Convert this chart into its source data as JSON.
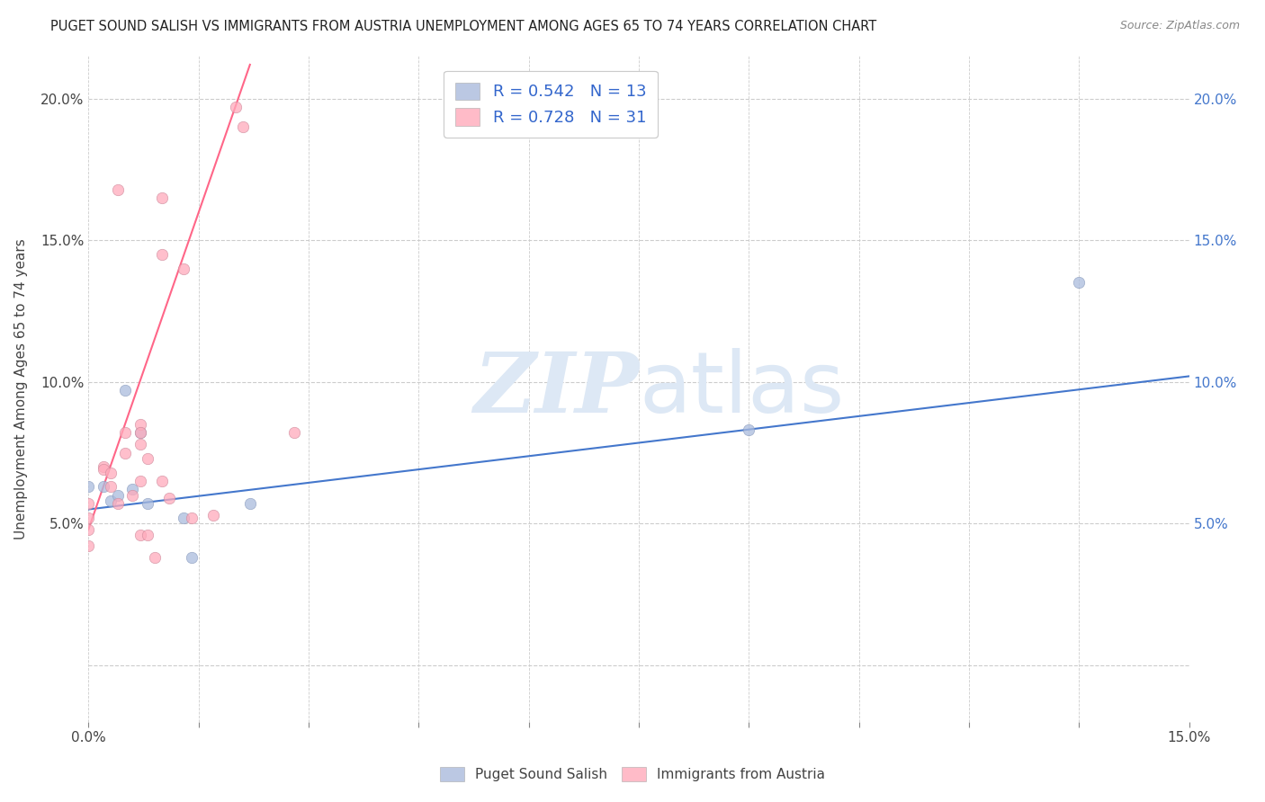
{
  "title": "PUGET SOUND SALISH VS IMMIGRANTS FROM AUSTRIA UNEMPLOYMENT AMONG AGES 65 TO 74 YEARS CORRELATION CHART",
  "source": "Source: ZipAtlas.com",
  "ylabel": "Unemployment Among Ages 65 to 74 years",
  "xlim": [
    0.0,
    0.15
  ],
  "ylim": [
    -0.02,
    0.215
  ],
  "x_ticks_minor": [
    0.0,
    0.015,
    0.03,
    0.045,
    0.06,
    0.075,
    0.09,
    0.105,
    0.12,
    0.135,
    0.15
  ],
  "x_tick_left_label": "0.0%",
  "x_tick_right_label": "15.0%",
  "y_ticks": [
    0.0,
    0.05,
    0.1,
    0.15,
    0.2
  ],
  "y_tick_labels_left": [
    "",
    "5.0%",
    "10.0%",
    "15.0%",
    "20.0%"
  ],
  "y_tick_labels_right": [
    "",
    "5.0%",
    "10.0%",
    "15.0%",
    "20.0%"
  ],
  "background_color": "#ffffff",
  "grid_color": "#cccccc",
  "blue_color": "#aabbdd",
  "pink_color": "#ffaabb",
  "blue_line_color": "#4477cc",
  "pink_line_color": "#ff6688",
  "legend_R_blue": "0.542",
  "legend_N_blue": "13",
  "legend_R_pink": "0.728",
  "legend_N_pink": "31",
  "blue_label": "Puget Sound Salish",
  "pink_label": "Immigrants from Austria",
  "blue_scatter_x": [
    0.0,
    0.002,
    0.003,
    0.004,
    0.005,
    0.006,
    0.007,
    0.008,
    0.013,
    0.014,
    0.022,
    0.09,
    0.135
  ],
  "blue_scatter_y": [
    0.063,
    0.063,
    0.058,
    0.06,
    0.097,
    0.062,
    0.082,
    0.057,
    0.052,
    0.038,
    0.057,
    0.083,
    0.135
  ],
  "pink_scatter_x": [
    0.0,
    0.0,
    0.0,
    0.0,
    0.002,
    0.002,
    0.003,
    0.003,
    0.004,
    0.004,
    0.005,
    0.005,
    0.006,
    0.007,
    0.007,
    0.007,
    0.007,
    0.007,
    0.008,
    0.008,
    0.009,
    0.01,
    0.01,
    0.01,
    0.011,
    0.013,
    0.014,
    0.017,
    0.02,
    0.021,
    0.028
  ],
  "pink_scatter_y": [
    0.057,
    0.052,
    0.048,
    0.042,
    0.07,
    0.069,
    0.068,
    0.063,
    0.168,
    0.057,
    0.082,
    0.075,
    0.06,
    0.085,
    0.082,
    0.078,
    0.065,
    0.046,
    0.073,
    0.046,
    0.038,
    0.165,
    0.145,
    0.065,
    0.059,
    0.14,
    0.052,
    0.053,
    0.197,
    0.19,
    0.082
  ],
  "blue_line_x": [
    0.0,
    0.15
  ],
  "blue_line_y": [
    0.055,
    0.102
  ],
  "pink_line_x": [
    0.0,
    0.022
  ],
  "pink_line_y": [
    0.048,
    0.212
  ],
  "watermark_zip": "ZIP",
  "watermark_atlas": "atlas",
  "watermark_color": "#dde8f5",
  "marker_size": 80
}
